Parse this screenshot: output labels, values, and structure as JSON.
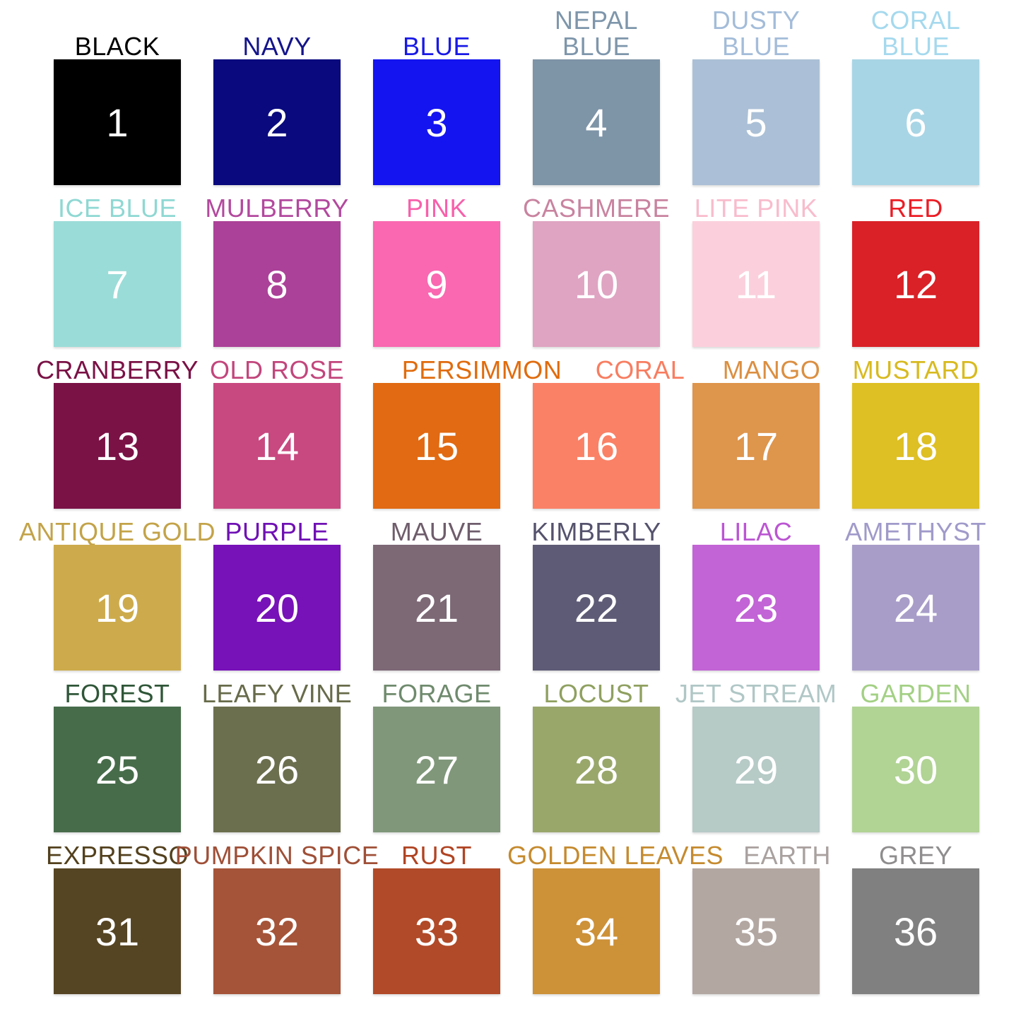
{
  "chart_data": {
    "type": "table",
    "grid": {
      "rows": 6,
      "cols": 6
    },
    "description_note": "",
    "swatches": [
      {
        "number": "1",
        "name": "BLACK",
        "label_lines": [
          "BLACK"
        ],
        "fill": "#000000",
        "label_color": "#000000",
        "number_color": "#ffffff"
      },
      {
        "number": "2",
        "name": "NAVY",
        "label_lines": [
          "NAVY"
        ],
        "fill": "#0a0a7e",
        "label_color": "#14148c",
        "number_color": "#ffffff"
      },
      {
        "number": "3",
        "name": "BLUE",
        "label_lines": [
          "BLUE"
        ],
        "fill": "#1414f0",
        "label_color": "#1919e6",
        "number_color": "#ffffff"
      },
      {
        "number": "4",
        "name": "NEPAL BLUE",
        "label_lines": [
          "NEPAL",
          "BLUE"
        ],
        "fill": "#7e94a7",
        "label_color": "#7e96ab",
        "number_color": "#ffffff"
      },
      {
        "number": "5",
        "name": "DUSTY BLUE",
        "label_lines": [
          "DUSTY",
          "BLUE"
        ],
        "fill": "#abc0d6",
        "label_color": "#a3bcd9",
        "number_color": "#ffffff"
      },
      {
        "number": "6",
        "name": "CORAL BLUE",
        "label_lines": [
          "CORAL",
          "BLUE"
        ],
        "fill": "#a8d5e5",
        "label_color": "#a5d9ee",
        "number_color": "#ffffff"
      },
      {
        "number": "7",
        "name": "ICE BLUE",
        "label_lines": [
          "ICE BLUE"
        ],
        "fill": "#9adcd8",
        "label_color": "#8fd8d3",
        "number_color": "#ffffff"
      },
      {
        "number": "8",
        "name": "MULBERRY",
        "label_lines": [
          "MULBERRY"
        ],
        "fill": "#ab4198",
        "label_color": "#b3499e",
        "number_color": "#ffffff"
      },
      {
        "number": "9",
        "name": "PINK",
        "label_lines": [
          "PINK"
        ],
        "fill": "#f968b1",
        "label_color": "#f760ab",
        "number_color": "#ffffff"
      },
      {
        "number": "10",
        "name": "CASHMERE",
        "label_lines": [
          "CASHMERE"
        ],
        "fill": "#dfa4c2",
        "label_color": "#c9839f",
        "number_color": "#ffffff"
      },
      {
        "number": "11",
        "name": "LITE PINK",
        "label_lines": [
          "LITE PINK"
        ],
        "fill": "#fbd0dc",
        "label_color": "#f8bccd",
        "number_color": "#ffffff"
      },
      {
        "number": "12",
        "name": "RED",
        "label_lines": [
          "RED"
        ],
        "fill": "#d92127",
        "label_color": "#ec1c24",
        "number_color": "#ffffff"
      },
      {
        "number": "13",
        "name": "CRANBERRY",
        "label_lines": [
          "CRANBERRY"
        ],
        "fill": "#7a1246",
        "label_color": "#7a1246",
        "number_color": "#ffffff"
      },
      {
        "number": "14",
        "name": "OLD ROSE",
        "label_lines": [
          "OLD ROSE"
        ],
        "fill": "#c8497f",
        "label_color": "#c2467c",
        "number_color": "#ffffff"
      },
      {
        "number": "15",
        "name": "PERSIMMON",
        "label_lines": [
          "PERSIMMON"
        ],
        "fill": "#e16a12",
        "label_color": "#e06c0e",
        "number_color": "#ffffff"
      },
      {
        "number": "16",
        "name": "CORAL",
        "label_lines": [
          "CORAL"
        ],
        "fill": "#fa8166",
        "label_color": "#f87d60",
        "number_color": "#ffffff"
      },
      {
        "number": "17",
        "name": "MANGO",
        "label_lines": [
          "MANGO"
        ],
        "fill": "#de954c",
        "label_color": "#db8f41",
        "number_color": "#ffffff"
      },
      {
        "number": "18",
        "name": "MUSTARD",
        "label_lines": [
          "MUSTARD"
        ],
        "fill": "#debf24",
        "label_color": "#d8ba1f",
        "number_color": "#ffffff"
      },
      {
        "number": "19",
        "name": "ANTIQUE GOLD",
        "label_lines": [
          "ANTIQUE GOLD"
        ],
        "fill": "#cdab4c",
        "label_color": "#c3a349",
        "number_color": "#ffffff"
      },
      {
        "number": "20",
        "name": "PURPLE",
        "label_lines": [
          "PURPLE"
        ],
        "fill": "#7711b8",
        "label_color": "#6f10b4",
        "number_color": "#ffffff"
      },
      {
        "number": "21",
        "name": "MAUVE",
        "label_lines": [
          "MAUVE"
        ],
        "fill": "#7d6876",
        "label_color": "#6e5c6b",
        "number_color": "#ffffff"
      },
      {
        "number": "22",
        "name": "KIMBERLY",
        "label_lines": [
          "KIMBERLY"
        ],
        "fill": "#5e5b76",
        "label_color": "#55526d",
        "number_color": "#ffffff"
      },
      {
        "number": "23",
        "name": "LILAC",
        "label_lines": [
          "LILAC"
        ],
        "fill": "#c263d6",
        "label_color": "#bb55d3",
        "number_color": "#ffffff"
      },
      {
        "number": "24",
        "name": "AMETHYST",
        "label_lines": [
          "AMETHYST"
        ],
        "fill": "#a89dc9",
        "label_color": "#a09aca",
        "number_color": "#ffffff"
      },
      {
        "number": "25",
        "name": "FOREST",
        "label_lines": [
          "FOREST"
        ],
        "fill": "#476c4a",
        "label_color": "#2f5638",
        "number_color": "#ffffff"
      },
      {
        "number": "26",
        "name": "LEAFY VINE",
        "label_lines": [
          "LEAFY VINE"
        ],
        "fill": "#6c6f4e",
        "label_color": "#686b4a",
        "number_color": "#ffffff"
      },
      {
        "number": "27",
        "name": "FORAGE",
        "label_lines": [
          "FORAGE"
        ],
        "fill": "#80977a",
        "label_color": "#6f8a6d",
        "number_color": "#ffffff"
      },
      {
        "number": "28",
        "name": "LOCUST",
        "label_lines": [
          "LOCUST"
        ],
        "fill": "#99a76b",
        "label_color": "#8fa060",
        "number_color": "#ffffff"
      },
      {
        "number": "29",
        "name": "JET STREAM",
        "label_lines": [
          "JET STREAM"
        ],
        "fill": "#b6cac6",
        "label_color": "#b0c7c6",
        "number_color": "#ffffff"
      },
      {
        "number": "30",
        "name": "GARDEN",
        "label_lines": [
          "GARDEN"
        ],
        "fill": "#b1d394",
        "label_color": "#a3d084",
        "number_color": "#ffffff"
      },
      {
        "number": "31",
        "name": "EXPRESSO",
        "label_lines": [
          "EXPRESSO"
        ],
        "fill": "#564523",
        "label_color": "#53411d",
        "number_color": "#ffffff"
      },
      {
        "number": "32",
        "name": "PUMPKIN SPICE",
        "label_lines": [
          "PUMPKIN SPICE"
        ],
        "fill": "#a55439",
        "label_color": "#9f4f37",
        "number_color": "#ffffff"
      },
      {
        "number": "33",
        "name": "RUST",
        "label_lines": [
          "RUST"
        ],
        "fill": "#b14a28",
        "label_color": "#b04423",
        "number_color": "#ffffff"
      },
      {
        "number": "34",
        "name": "GOLDEN LEAVES",
        "label_lines": [
          "GOLDEN LEAVES"
        ],
        "fill": "#cd9138",
        "label_color": "#c58a2e",
        "number_color": "#ffffff"
      },
      {
        "number": "35",
        "name": "EARTH",
        "label_lines": [
          "EARTH"
        ],
        "fill": "#b3a7a2",
        "label_color": "#a9a19f",
        "number_color": "#ffffff"
      },
      {
        "number": "36",
        "name": "GREY",
        "label_lines": [
          "GREY"
        ],
        "fill": "#808080",
        "label_color": "#8f8d8e",
        "number_color": "#ffffff"
      }
    ]
  }
}
